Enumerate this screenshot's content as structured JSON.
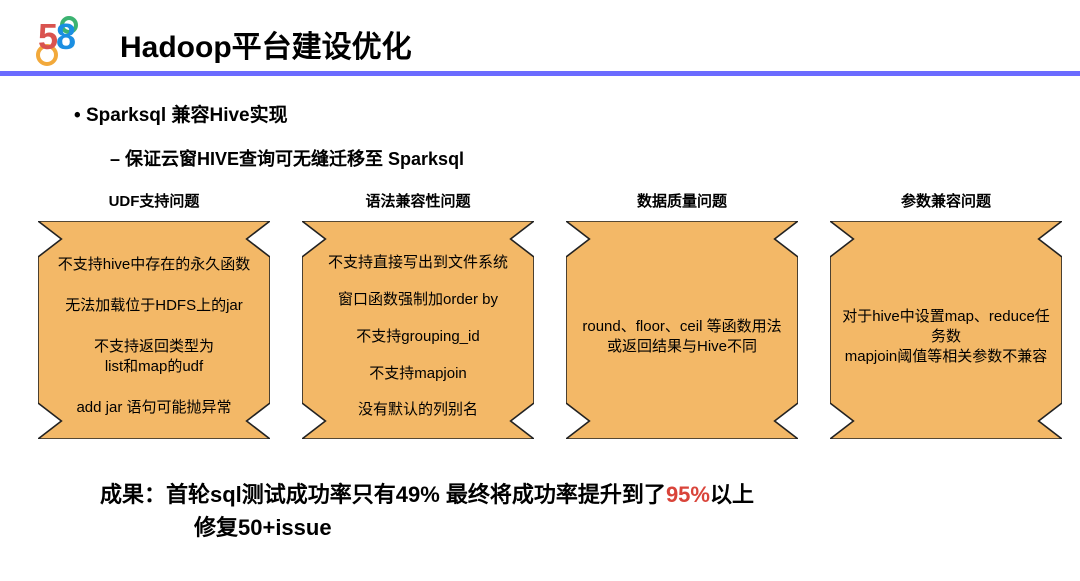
{
  "logo": {
    "d1": "5",
    "d2": "8"
  },
  "title": "Hadoop平台建设优化",
  "bullets": {
    "b1": "Sparksql 兼容Hive实现",
    "b2": "保证云窗HIVE查询可无缝迁移至 Sparksql"
  },
  "style": {
    "accent_blue": "#6b6bff",
    "card_fill": "#f3b867",
    "card_stroke": "#222222",
    "highlight_red": "#d9443a"
  },
  "cards": [
    {
      "title": "UDF支持问题",
      "items": [
        "不支持hive中存在的永久函数",
        "无法加载位于HDFS上的jar",
        "不支持返回类型为\nlist和map的udf",
        "add jar 语句可能抛异常"
      ]
    },
    {
      "title": "语法兼容性问题",
      "items": [
        "不支持直接写出到文件系统",
        "窗口函数强制加order by",
        "不支持grouping_id",
        "不支持mapjoin",
        "没有默认的列别名"
      ]
    },
    {
      "title": "数据质量问题",
      "items": [
        "round、floor、ceil 等函数用法或返回结果与Hive不同"
      ]
    },
    {
      "title": "参数兼容问题",
      "items": [
        "对于hive中设置map、reduce任务数\nmapjoin阈值等相关参数不兼容"
      ]
    }
  ],
  "result": {
    "prefix": "成果：首轮sql测试成功率只有49%   最终将成功率提升到了",
    "highlight": "95%",
    "suffix": "以上",
    "line2": "修复50+issue"
  }
}
